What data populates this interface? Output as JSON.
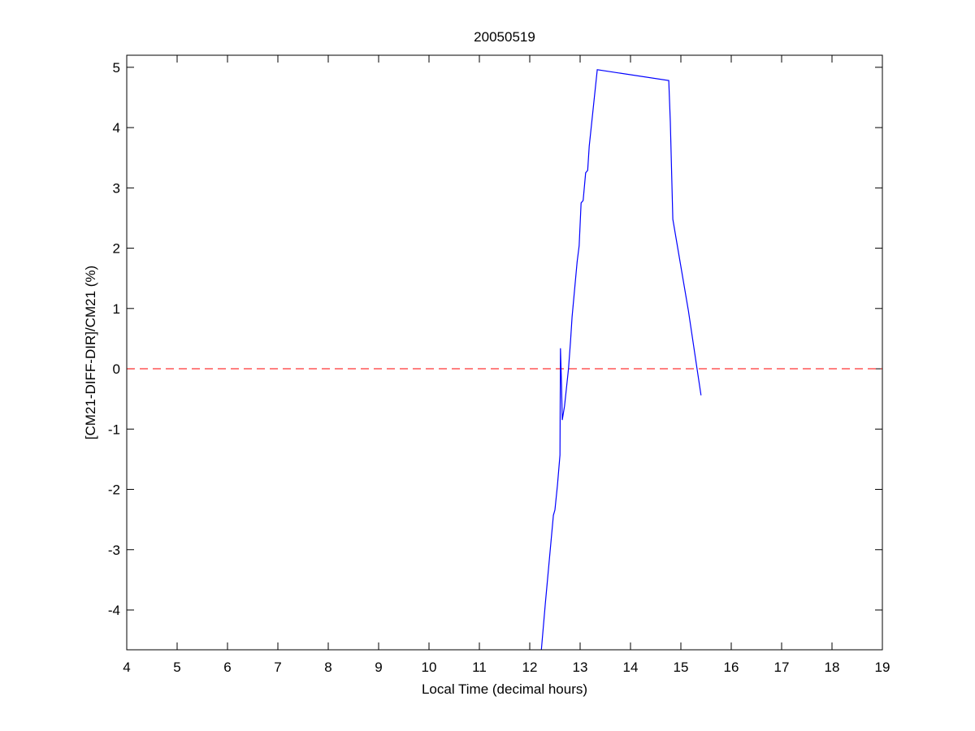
{
  "chart_data": {
    "type": "line",
    "title": "20050519",
    "xlabel": "Local Time (decimal hours)",
    "ylabel": "[CM21-DIFF-DIR]/CM21 (%)",
    "xlim": [
      4,
      19
    ],
    "ylim": [
      -4.66,
      5.2
    ],
    "xticks": [
      4,
      5,
      6,
      7,
      8,
      9,
      10,
      11,
      12,
      13,
      14,
      15,
      16,
      17,
      18,
      19
    ],
    "yticks": [
      -4,
      -3,
      -2,
      -1,
      0,
      1,
      2,
      3,
      4,
      5
    ],
    "grid": false,
    "series": [
      {
        "color": "#0000ff",
        "x": [
          12.23,
          12.31,
          12.47,
          12.5,
          12.55,
          12.6,
          12.61,
          12.63,
          12.645,
          12.69,
          12.77,
          12.81,
          12.84,
          12.94,
          12.98,
          13.02,
          13.06,
          13.11,
          13.15,
          13.18,
          13.34,
          14.76,
          14.79,
          14.84,
          15.15,
          15.32,
          15.4
        ],
        "y": [
          -4.66,
          -3.89,
          -2.43,
          -2.34,
          -1.93,
          -1.43,
          0.34,
          -0.26,
          -0.85,
          -0.62,
          0.0,
          0.46,
          0.86,
          1.77,
          2.04,
          2.75,
          2.79,
          3.25,
          3.29,
          3.69,
          4.96,
          4.78,
          4.1,
          2.48,
          0.96,
          0.01,
          -0.44
        ]
      }
    ],
    "reference_line": {
      "y": 0,
      "color": "#ff0000",
      "style": "dashed"
    }
  }
}
